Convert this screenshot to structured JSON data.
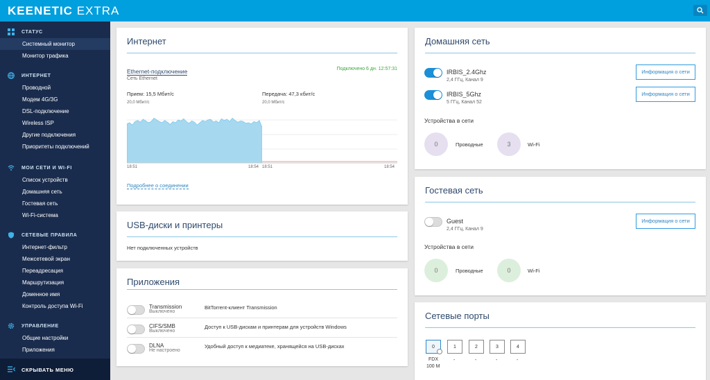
{
  "app": {
    "brand": "KEENETIC",
    "model": "EXTRA"
  },
  "sidebar": {
    "sections": [
      {
        "title": "СТАТУС",
        "icon": "grid-icon",
        "items": [
          "Системный монитор",
          "Монитор трафика"
        ]
      },
      {
        "title": "ИНТЕРНЕТ",
        "icon": "globe-icon",
        "items": [
          "Проводной",
          "Модем 4G/3G",
          "DSL-подключение",
          "Wireless ISP",
          "Другие подключения",
          "Приоритеты подключений"
        ]
      },
      {
        "title": "МОИ СЕТИ И WI-FI",
        "icon": "wifi-icon",
        "items": [
          "Список устройств",
          "Домашняя сеть",
          "Гостевая сеть",
          "Wi-Fi-система"
        ]
      },
      {
        "title": "СЕТЕВЫЕ ПРАВИЛА",
        "icon": "shield-icon",
        "items": [
          "Интернет-фильтр",
          "Межсетевой экран",
          "Переадресация",
          "Маршрутизация",
          "Доменное имя",
          "Контроль доступа Wi-Fi"
        ]
      },
      {
        "title": "УПРАВЛЕНИЕ",
        "icon": "gear-icon",
        "items": [
          "Общие настройки",
          "Приложения"
        ]
      }
    ],
    "active_item": "Системный монитор",
    "hide_label": "СКРЫВАТЬ МЕНЮ"
  },
  "internet": {
    "title": "Интернет",
    "connection": "Ethernet-подключение",
    "network": "Сеть Ethernet",
    "status": "Подключено 6 дн. 12:57:31",
    "rx_label": "Прием: 15,5 Мбит/с",
    "tx_label": "Передача: 47,3 кбит/с",
    "rx_scale": "20,0 Мбит/с",
    "tx_scale": "20,0 Мбит/с",
    "rx_t0": "18:51",
    "rx_t1": "18:54",
    "tx_t0": "18:51",
    "tx_t1": "18:54",
    "more": "Подробнее о соединении",
    "rx_series": [
      0.68,
      0.7,
      0.66,
      0.72,
      0.74,
      0.71,
      0.76,
      0.73,
      0.7,
      0.72,
      0.78,
      0.75,
      0.72,
      0.7,
      0.74,
      0.71,
      0.67,
      0.72,
      0.7,
      0.75,
      0.73,
      0.77,
      0.72,
      0.69,
      0.73,
      0.71,
      0.66,
      0.7,
      0.74,
      0.72,
      0.75,
      0.76,
      0.71,
      0.73,
      0.7,
      0.77,
      0.74,
      0.76,
      0.72,
      0.78,
      0.74,
      0.71,
      0.73,
      0.72,
      0.69,
      0.7,
      0.68,
      0.72,
      0.7,
      0.74,
      0.62
    ]
  },
  "usb": {
    "title": "USB-диски и принтеры",
    "empty": "Нет подключенных устройств"
  },
  "apps": {
    "title": "Приложения",
    "rows": [
      {
        "name": "Transmission",
        "state": "Выключено",
        "desc": "BitTorrent-клиент Transmission"
      },
      {
        "name": "CIFS/SMB",
        "state": "Выключено",
        "desc": "Доступ к USB-дискам и принтерам для устройств Windows"
      },
      {
        "name": "DLNA",
        "state": "Не настроено",
        "desc": "Удобный доступ к медиатеке, хранящейся на USB-дисках"
      }
    ]
  },
  "home": {
    "title": "Домашняя сеть",
    "wifi": [
      {
        "ssid": "IRBIS_2.4Ghz",
        "detail": "2,4 ГГц, Канал 9",
        "on": true
      },
      {
        "ssid": "IRBIS_5Ghz",
        "detail": "5 ГГц, Канал 52",
        "on": true
      }
    ],
    "info_btn": "Информация о сети",
    "devices_label": "Устройства в сети",
    "wired_count": "0",
    "wired_label": "Проводные",
    "wifi_count": "3",
    "wifi_label": "Wi-Fi",
    "circle_color": "#e5dff0"
  },
  "guest": {
    "title": "Гостевая сеть",
    "ssid": "Guest",
    "detail": "2,4 ГГц, Канал 9",
    "on": false,
    "info_btn": "Информация о сети",
    "devices_label": "Устройства в сети",
    "wired_count": "0",
    "wired_label": "Проводные",
    "wifi_count": "0",
    "wifi_label": "Wi-Fi",
    "circle_color": "#dcefdc"
  },
  "ports": {
    "title": "Сетевые порты",
    "list": [
      {
        "id": "0",
        "line1": "FDX",
        "line2": "100 M",
        "active": true
      },
      {
        "id": "1",
        "line1": "-",
        "active": false
      },
      {
        "id": "2",
        "line1": "-",
        "active": false
      },
      {
        "id": "3",
        "line1": "-",
        "active": false
      },
      {
        "id": "4",
        "line1": "-",
        "active": false
      }
    ]
  },
  "colors": {
    "accent": "#009fde",
    "sidebar": "#1a2c4d",
    "chart_fill": "#a6d8f0",
    "chart_line": "#6cc0e8"
  }
}
